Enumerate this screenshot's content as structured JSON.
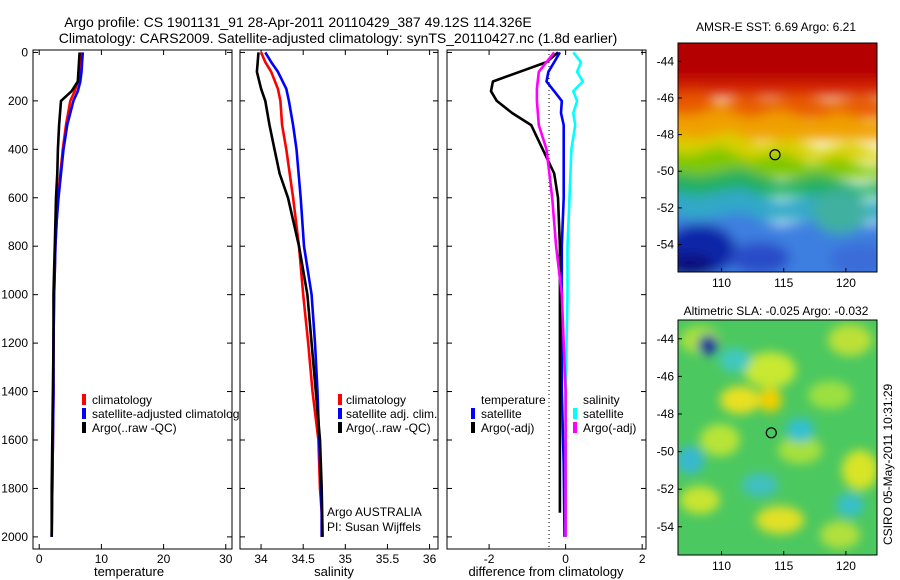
{
  "header": {
    "line1": "Argo profile: CS 1901131_91 28-Apr-2011 20110429_387 49.12S 114.326E",
    "line2": "Climatology: CARS2009. Satellite-adjusted climatology: synTS_20110427.nc (1.8d earlier)"
  },
  "side_label": "CSIRO 05-May-2011 10:31:29",
  "depth_ticks": [
    "0",
    "200",
    "400",
    "600",
    "800",
    "1000",
    "1200",
    "1400",
    "1600",
    "1800",
    "2000"
  ],
  "colors": {
    "climatology": "#ff0000",
    "satellite": "#0000ff",
    "argo": "#000000",
    "salinity_satellite": "#00ffff",
    "salinity_argo": "#ff00ff",
    "marker": "#000000"
  },
  "chart_data": [
    {
      "type": "line",
      "id": "temperature",
      "xlabel": "temperature",
      "ylabel": "",
      "xlim": [
        -1,
        31
      ],
      "ylim": [
        2050,
        -10
      ],
      "y_reversed": true,
      "x_ticks": [
        "0",
        "10",
        "20",
        "30"
      ],
      "legend_position": "lower-middle",
      "legend": [
        "climatology",
        "satellite-adjusted climatolog",
        "Argo(..raw -QC)"
      ],
      "series": [
        {
          "name": "climatology",
          "color": "red",
          "x": [
            6.8,
            6.7,
            6.5,
            6.2,
            5.7,
            5.0,
            4.3,
            3.8,
            3.4,
            3.0,
            2.8,
            2.6,
            2.5,
            2.4,
            2.3,
            2.3,
            2.2,
            2.1,
            2.0
          ],
          "y": [
            0,
            40,
            80,
            120,
            160,
            200,
            300,
            400,
            500,
            600,
            700,
            800,
            900,
            1000,
            1200,
            1400,
            1600,
            1800,
            2000
          ]
        },
        {
          "name": "satellite-adjusted climatolog",
          "color": "blue",
          "x": [
            7.0,
            6.9,
            6.8,
            6.6,
            6.2,
            5.5,
            4.5,
            3.9,
            3.5,
            3.1,
            2.8,
            2.6,
            2.5,
            2.4,
            2.3,
            2.3,
            2.2,
            2.1,
            2.0
          ],
          "y": [
            0,
            40,
            80,
            120,
            160,
            200,
            300,
            400,
            500,
            600,
            700,
            800,
            900,
            1000,
            1200,
            1400,
            1600,
            1800,
            2000
          ]
        },
        {
          "name": "Argo(..raw -QC)",
          "color": "black",
          "x": [
            6.5,
            6.4,
            6.3,
            6.2,
            5.2,
            3.5,
            3.2,
            3.0,
            2.9,
            2.7,
            2.6,
            2.5,
            2.4,
            2.3,
            2.3,
            2.2,
            2.1,
            2.0,
            2.0
          ],
          "y": [
            0,
            40,
            80,
            120,
            160,
            200,
            300,
            400,
            500,
            600,
            700,
            800,
            900,
            1000,
            1200,
            1400,
            1600,
            1800,
            2000
          ]
        }
      ]
    },
    {
      "type": "line",
      "id": "salinity",
      "xlabel": "salinity",
      "ylabel": "",
      "xlim": [
        33.75,
        36.1
      ],
      "ylim": [
        2050,
        -10
      ],
      "y_reversed": true,
      "x_ticks": [
        "34",
        "34.5",
        "35",
        "35.5",
        "36"
      ],
      "legend_position": "lower-right",
      "legend": [
        "climatology",
        "satellite adj. clim.",
        "Argo(..raw -QC)"
      ],
      "annotations": [
        "Argo AUSTRALIA",
        "PI: Susan Wijffels"
      ],
      "series": [
        {
          "name": "climatology",
          "color": "red",
          "x": [
            34.0,
            34.05,
            34.12,
            34.2,
            34.23,
            34.25,
            34.3,
            34.38,
            34.45,
            34.5,
            34.56,
            34.61,
            34.68,
            34.7,
            34.72,
            34.72
          ],
          "y": [
            0,
            40,
            80,
            150,
            200,
            300,
            400,
            600,
            800,
            1000,
            1200,
            1400,
            1600,
            1800,
            1900,
            2000
          ]
        },
        {
          "name": "satellite adj. clim.",
          "color": "blue",
          "x": [
            34.05,
            34.12,
            34.2,
            34.3,
            34.33,
            34.38,
            34.42,
            34.47,
            34.51,
            34.6,
            34.64,
            34.67,
            34.69,
            34.71,
            34.72,
            34.72
          ],
          "y": [
            0,
            40,
            80,
            150,
            200,
            300,
            400,
            600,
            800,
            1000,
            1200,
            1400,
            1600,
            1800,
            1900,
            2000
          ]
        },
        {
          "name": "Argo(..raw -QC)",
          "color": "black",
          "x": [
            33.97,
            33.95,
            34.0,
            34.05,
            34.1,
            34.16,
            34.22,
            34.32,
            34.45,
            34.55,
            34.6,
            34.65,
            34.7,
            34.72,
            34.73
          ],
          "y": [
            0,
            80,
            150,
            200,
            300,
            400,
            500,
            600,
            800,
            1000,
            1200,
            1400,
            1600,
            1800,
            2000
          ]
        }
      ]
    },
    {
      "type": "line",
      "id": "difference",
      "xlabel": "difference from climatology",
      "ylabel": "",
      "xlim": [
        -3.1,
        2.1
      ],
      "ylim": [
        2050,
        -10
      ],
      "y_reversed": true,
      "x_ticks": [
        "-2",
        "0",
        "2"
      ],
      "legend_position": "lower-middle",
      "legend": [
        "temperature",
        "satellite",
        "Argo(-adj)",
        "salinity",
        "satellite",
        "Argo(-adj)"
      ],
      "series": [
        {
          "name": "temperature satellite",
          "color": "blue",
          "x": [
            -0.15,
            -0.3,
            -0.45,
            -0.5,
            -0.3,
            -0.1,
            -0.12,
            -0.05,
            -0.05,
            -0.05,
            -0.1,
            -0.1,
            -0.1,
            -0.1,
            -0.05,
            -0.03
          ],
          "y": [
            0,
            40,
            80,
            120,
            160,
            200,
            250,
            300,
            400,
            600,
            800,
            1000,
            1200,
            1400,
            1700,
            2000
          ]
        },
        {
          "name": "temperature Argo(-adj)",
          "color": "black",
          "x": [
            -0.2,
            -0.5,
            -1.2,
            -1.9,
            -1.95,
            -1.8,
            -1.4,
            -0.9,
            -0.6,
            -0.3,
            -0.2,
            -0.15,
            -0.15,
            -0.15,
            -0.15,
            -0.15,
            -0.15
          ],
          "y": [
            0,
            40,
            80,
            120,
            160,
            200,
            250,
            300,
            400,
            500,
            600,
            800,
            1000,
            1200,
            1400,
            1700,
            1900
          ]
        },
        {
          "name": "salinity satellite",
          "color": "cyan",
          "x": [
            0.2,
            0.4,
            0.3,
            0.45,
            0.2,
            0.3,
            0.2,
            0.25,
            0.15,
            0.1,
            0.05,
            0.05,
            0.0,
            0.0
          ],
          "y": [
            0,
            40,
            80,
            120,
            160,
            200,
            250,
            300,
            400,
            600,
            800,
            1000,
            1400,
            2000
          ]
        },
        {
          "name": "salinity Argo(-adj)",
          "color": "magenta",
          "x": [
            -0.3,
            -0.5,
            -0.7,
            -0.75,
            -0.75,
            -0.7,
            -0.5,
            -0.35,
            -0.25,
            -0.1,
            -0.05,
            0.0,
            0.0,
            0.0
          ],
          "y": [
            0,
            40,
            80,
            150,
            200,
            300,
            400,
            600,
            800,
            1000,
            1200,
            1400,
            1700,
            2000
          ]
        }
      ]
    },
    {
      "type": "heatmap",
      "id": "sst_map",
      "title": "AMSR-E SST: 6.69 Argo: 6.21",
      "xlim": [
        106.5,
        122.5
      ],
      "ylim": [
        -55.5,
        -43.0
      ],
      "x_ticks": [
        "110",
        "115",
        "120"
      ],
      "y_ticks": [
        "-44",
        "-46",
        "-48",
        "-50",
        "-52",
        "-54"
      ],
      "marker": {
        "lon": 114.3,
        "lat": -49.1
      },
      "colormap": "jet",
      "pattern": "warm (red) in north, banded orange/yellow front near 46-48S, green near 49-50S, cyan/blue south of 51S, darkest blue toward south-west"
    },
    {
      "type": "heatmap",
      "id": "sla_map",
      "title": "Altimetric SLA: -0.025 Argo: -0.032",
      "xlim": [
        106.5,
        122.5
      ],
      "ylim": [
        -55.5,
        -43.0
      ],
      "x_ticks": [
        "110",
        "115",
        "120"
      ],
      "y_ticks": [
        "-44",
        "-46",
        "-48",
        "-50",
        "-52",
        "-54"
      ],
      "marker": {
        "lon": 114.0,
        "lat": -49.0
      },
      "colormap": "jet",
      "pattern": "mostly green with scattered yellow patches, cyan lows, one small dark-blue eddy near 109E 44S"
    }
  ]
}
